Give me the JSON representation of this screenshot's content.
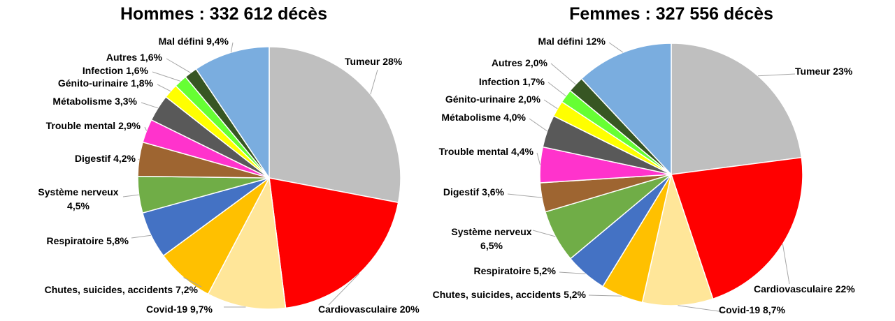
{
  "chart_data": [
    {
      "type": "pie",
      "title": "Hommes : 332 612 décès",
      "slices": [
        {
          "label": "Tumeur 28%",
          "value": 28,
          "color": "#bfbfbf"
        },
        {
          "label": "Cardiovasculaire 20%",
          "value": 20,
          "color": "#ff0000"
        },
        {
          "label": "Covid-19  9,7%",
          "value": 9.7,
          "color": "#ffe699"
        },
        {
          "label": "Chutes, suicides, accidents 7,2%",
          "value": 7.2,
          "color": "#ffc000"
        },
        {
          "label": "Respiratoire 5,8%",
          "value": 5.8,
          "color": "#4472c4"
        },
        {
          "label": [
            "Système nerveux",
            "4,5%"
          ],
          "value": 4.5,
          "color": "#70ad47"
        },
        {
          "label": "Digestif 4,2%",
          "value": 4.2,
          "color": "#9e6531"
        },
        {
          "label": "Trouble mental 2,9%",
          "value": 2.9,
          "color": "#ff33cc"
        },
        {
          "label": "Métabolisme 3,3%",
          "value": 3.3,
          "color": "#595959"
        },
        {
          "label": "Génito-urinaire 1,8%",
          "value": 1.8,
          "color": "#ffff00"
        },
        {
          "label": "Infection 1,6%",
          "value": 1.6,
          "color": "#66ff33"
        },
        {
          "label": "Autres 1,6%",
          "value": 1.6,
          "color": "#375623"
        },
        {
          "label": "Mal défini 9,4%",
          "value": 9.4,
          "color": "#7aaddf"
        }
      ]
    },
    {
      "type": "pie",
      "title": "Femmes : 327 556 décès",
      "slices": [
        {
          "label": "Tumeur 23%",
          "value": 23,
          "color": "#bfbfbf"
        },
        {
          "label": "Cardiovasculaire 22%",
          "value": 22,
          "color": "#ff0000"
        },
        {
          "label": "Covid-19  8,7%",
          "value": 8.7,
          "color": "#ffe699"
        },
        {
          "label": "Chutes, suicides, accidents 5,2%",
          "value": 5.2,
          "color": "#ffc000"
        },
        {
          "label": "Respiratoire 5,2%",
          "value": 5.2,
          "color": "#4472c4"
        },
        {
          "label": [
            "Système nerveux",
            "6,5%"
          ],
          "value": 6.5,
          "color": "#70ad47"
        },
        {
          "label": "Digestif 3,6%",
          "value": 3.6,
          "color": "#9e6531"
        },
        {
          "label": "Trouble mental 4,4%",
          "value": 4.4,
          "color": "#ff33cc"
        },
        {
          "label": "Métabolisme 4,0%",
          "value": 4.0,
          "color": "#595959"
        },
        {
          "label": "Génito-urinaire 2,0%",
          "value": 2.0,
          "color": "#ffff00"
        },
        {
          "label": "Infection 1,7%",
          "value": 1.7,
          "color": "#66ff33"
        },
        {
          "label": "Autres 2,0%",
          "value": 2.0,
          "color": "#375623"
        },
        {
          "label": "Mal défini 12%",
          "value": 12,
          "color": "#7aaddf"
        }
      ]
    }
  ]
}
